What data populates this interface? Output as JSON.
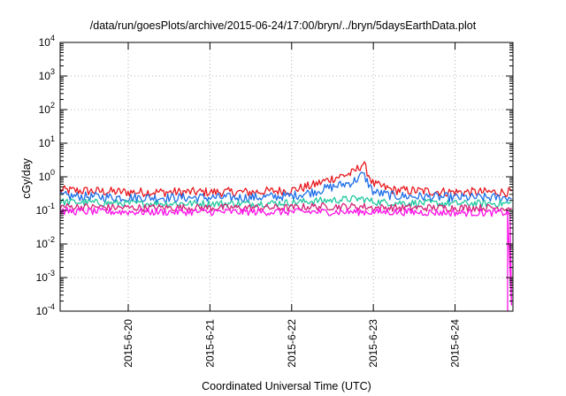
{
  "chart_data": {
    "type": "line",
    "title": "/data/run/goesPlots/archive/2015-06-24/17:00/bryn/../bryn/5daysEarthData.plot",
    "xlabel": "Coordinated Universal Time (UTC)",
    "ylabel": "cGy/day",
    "yscale": "log",
    "ylim": [
      0.0001,
      10000
    ],
    "xlim": [
      "2015-06-19T04:00",
      "2015-06-24T17:00"
    ],
    "x_ticks": [
      "2015-6-20",
      "2015-6-21",
      "2015-6-22",
      "2015-6-23",
      "2015-6-24"
    ],
    "y_ticks": [
      {
        "base": "10",
        "exp": "-4"
      },
      {
        "base": "10",
        "exp": "-3"
      },
      {
        "base": "10",
        "exp": "-2"
      },
      {
        "base": "10",
        "exp": "-1"
      },
      {
        "base": "10",
        "exp": "0"
      },
      {
        "base": "10",
        "exp": "1"
      },
      {
        "base": "10",
        "exp": "2"
      },
      {
        "base": "10",
        "exp": "3"
      },
      {
        "base": "10",
        "exp": "4"
      }
    ],
    "grid": true,
    "legend": "none",
    "x": [
      "2015-06-19T04:00",
      "2015-06-20T00:00",
      "2015-06-21T00:00",
      "2015-06-21T12:00",
      "2015-06-22T00:00",
      "2015-06-22T06:00",
      "2015-06-22T12:00",
      "2015-06-22T18:00",
      "2015-06-22T21:00",
      "2015-06-23T00:00",
      "2015-06-23T06:00",
      "2015-06-24T00:00",
      "2015-06-24T17:00"
    ],
    "series": [
      {
        "color": "#e8191f",
        "values": [
          0.4,
          0.35,
          0.35,
          0.35,
          0.4,
          0.55,
          0.9,
          1.3,
          2.5,
          0.6,
          0.4,
          0.35,
          0.35
        ]
      },
      {
        "color": "#1f6fe8",
        "values": [
          0.27,
          0.24,
          0.24,
          0.24,
          0.27,
          0.35,
          0.5,
          0.7,
          1.2,
          0.35,
          0.27,
          0.24,
          0.24
        ]
      },
      {
        "color": "#21c7a0",
        "values": [
          0.18,
          0.16,
          0.16,
          0.16,
          0.17,
          0.19,
          0.2,
          0.22,
          0.22,
          0.18,
          0.17,
          0.16,
          0.16
        ]
      },
      {
        "color": "#d4237a",
        "values": [
          0.13,
          0.12,
          0.12,
          0.12,
          0.12,
          0.13,
          0.13,
          0.13,
          0.13,
          0.12,
          0.12,
          0.12,
          0.12
        ]
      },
      {
        "color": "#ff10e8",
        "values": [
          0.095,
          0.09,
          0.09,
          0.09,
          0.09,
          0.09,
          0.09,
          0.09,
          0.09,
          0.09,
          0.09,
          0.085,
          0.0001
        ]
      }
    ]
  }
}
